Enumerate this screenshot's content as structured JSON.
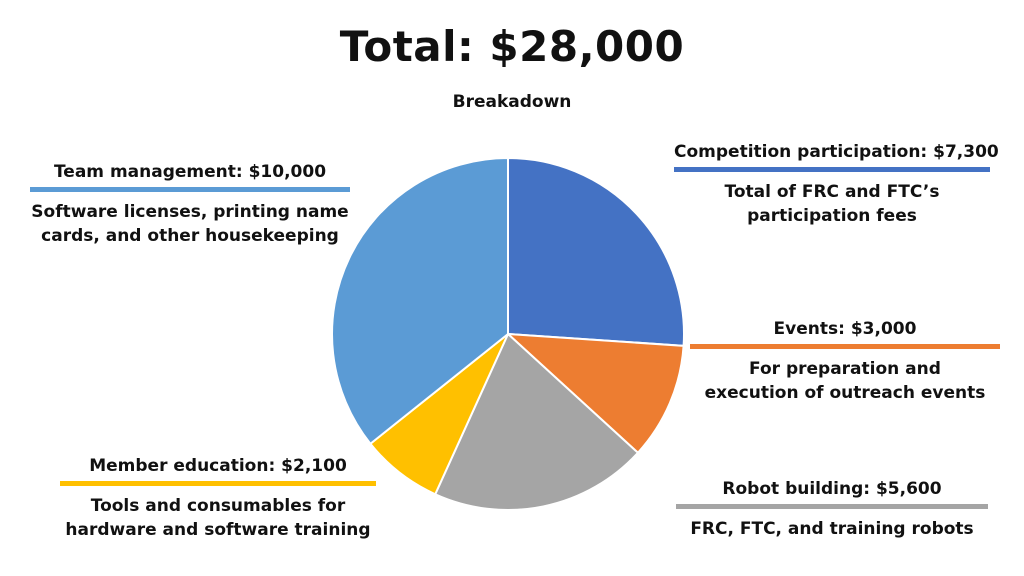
{
  "title": "Total: $28,000",
  "subtitle": "Breakadown",
  "chart_data": {
    "type": "pie",
    "title": "Total: $28,000",
    "subtitle": "Breakadown",
    "start_angle_deg": 0,
    "direction": "clockwise",
    "slices": [
      {
        "label": "Competition participation",
        "value": 7300,
        "color": "#4472C4"
      },
      {
        "label": "Events",
        "value": 3000,
        "color": "#ED7D31"
      },
      {
        "label": "Robot building",
        "value": 5600,
        "color": "#A5A5A5"
      },
      {
        "label": "Member education",
        "value": 2100,
        "color": "#FFC000"
      },
      {
        "label": "Team management",
        "value": 10000,
        "color": "#5B9BD5"
      }
    ]
  },
  "callouts": {
    "competition": {
      "heading": "Competition participation: $7,300",
      "desc": "Total of FRC and FTC’s participation fees",
      "color": "#4472C4"
    },
    "events": {
      "heading": "Events: $3,000",
      "desc": "For preparation and execution of outreach events",
      "color": "#ED7D31"
    },
    "robot": {
      "heading": "Robot building: $5,600",
      "desc": "FRC, FTC, and training robots",
      "color": "#A5A5A5"
    },
    "education": {
      "heading": "Member education: $2,100",
      "desc": "Tools and consumables for hardware and software training",
      "color": "#FFC000"
    },
    "management": {
      "heading": "Team management: $10,000",
      "desc": "Software licenses, printing name cards, and other housekeeping",
      "color": "#5B9BD5"
    }
  }
}
